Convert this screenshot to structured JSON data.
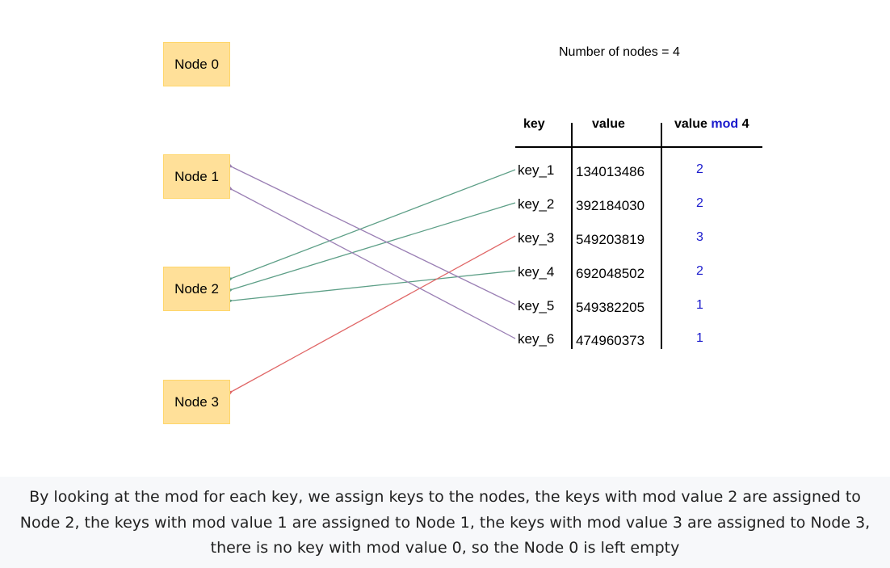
{
  "nodes": [
    {
      "id": "0",
      "label": "Node 0"
    },
    {
      "id": "1",
      "label": "Node 1"
    },
    {
      "id": "2",
      "label": "Node 2"
    },
    {
      "id": "3",
      "label": "Node 3"
    }
  ],
  "nodes_count_label": "Number of nodes = 4",
  "table": {
    "headers": {
      "key": "key",
      "value": "value",
      "mod_prefix": "value",
      "mod_word": "mod",
      "mod_suffix": "4"
    },
    "rows": [
      {
        "key": "key_1",
        "value": "134013486",
        "mod": "2"
      },
      {
        "key": "key_2",
        "value": "392184030",
        "mod": "2"
      },
      {
        "key": "key_3",
        "value": "549203819",
        "mod": "3"
      },
      {
        "key": "key_4",
        "value": "692048502",
        "mod": "2"
      },
      {
        "key": "key_5",
        "value": "549382205",
        "mod": "1"
      },
      {
        "key": "key_6",
        "value": "474960373",
        "mod": "1"
      }
    ]
  },
  "arrow_colors": {
    "node1": "#9a7fb4",
    "node2": "#5d9f87",
    "node3": "#e06666"
  },
  "caption": "By looking at the mod for each key, we assign keys to the nodes, the keys with mod value 2 are assigned to Node 2, the keys with mod value 1 are assigned to Node 1, the keys with mod value 3 are assigned to Node 3, there is no key with mod value 0, so the Node 0 is left empty"
}
